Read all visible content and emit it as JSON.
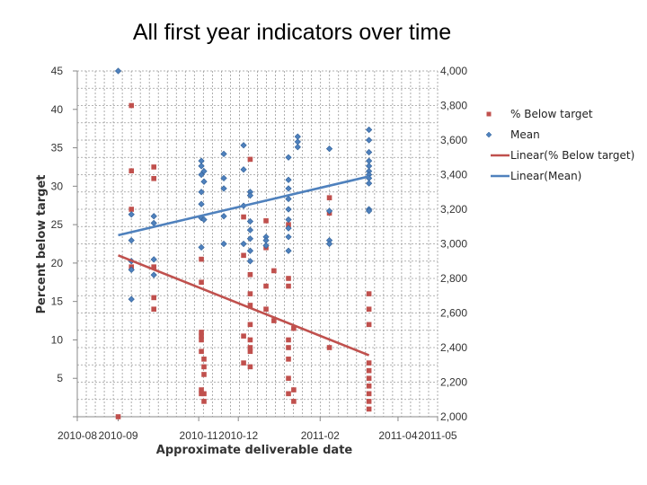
{
  "chart_data": {
    "type": "scatter",
    "title": "All first year indicators over time",
    "xlabel": "Approximate deliverable date",
    "ylabel": "Percent below target",
    "y2label": "Mean",
    "x_ticks": [
      "2010-08",
      "2010-09",
      "2010-11",
      "2010-12",
      "2011-02",
      "2011-04",
      "2011-05"
    ],
    "xlim": [
      "2010-08-01",
      "2011-05-01"
    ],
    "ylim": [
      0,
      45
    ],
    "y_ticks": [
      "45",
      "40",
      "35",
      "30",
      "25",
      "20",
      "15",
      "10",
      "5",
      "0"
    ],
    "y2lim": [
      2000,
      4000
    ],
    "y2_ticks": [
      "4,000",
      "3,800",
      "3,600",
      "3,400",
      "3,200",
      "3,000",
      "2,800",
      "2,600",
      "2,400",
      "2,200",
      "2,000"
    ],
    "grid": true,
    "legend_position": "right",
    "colors": {
      "below": "#c0504d",
      "mean": "#4f81bd",
      "mean_edge": "#2f5f97"
    },
    "legend": [
      "% Below target",
      "Mean",
      "Linear(% Below target)",
      "Linear(Mean)"
    ],
    "series": [
      {
        "name": "% Below target",
        "axis": "left",
        "points": [
          [
            "2010-09-01",
            0
          ],
          [
            "2010-09-11",
            40.5
          ],
          [
            "2010-09-11",
            32
          ],
          [
            "2010-09-11",
            27
          ],
          [
            "2010-09-11",
            19.5
          ],
          [
            "2010-09-28",
            32.5
          ],
          [
            "2010-09-28",
            31
          ],
          [
            "2010-09-28",
            19.5
          ],
          [
            "2010-09-28",
            15.5
          ],
          [
            "2010-09-28",
            14
          ],
          [
            "2010-11-03",
            20.5
          ],
          [
            "2010-11-03",
            17.5
          ],
          [
            "2010-11-03",
            11
          ],
          [
            "2010-11-03",
            10.5
          ],
          [
            "2010-11-03",
            10
          ],
          [
            "2010-11-03",
            8.5
          ],
          [
            "2010-11-03",
            3.5
          ],
          [
            "2010-11-03",
            3
          ],
          [
            "2010-11-05",
            7.5
          ],
          [
            "2010-11-05",
            6.5
          ],
          [
            "2010-11-05",
            5.5
          ],
          [
            "2010-11-05",
            3
          ],
          [
            "2010-11-05",
            2
          ],
          [
            "2010-12-05",
            26
          ],
          [
            "2010-12-05",
            21
          ],
          [
            "2010-12-05",
            10.5
          ],
          [
            "2010-12-05",
            7
          ],
          [
            "2010-12-10",
            33.5
          ],
          [
            "2010-12-10",
            18.5
          ],
          [
            "2010-12-10",
            16
          ],
          [
            "2010-12-10",
            14.5
          ],
          [
            "2010-12-10",
            12
          ],
          [
            "2010-12-10",
            10
          ],
          [
            "2010-12-10",
            9
          ],
          [
            "2010-12-10",
            8.5
          ],
          [
            "2010-12-10",
            6.5
          ],
          [
            "2010-12-22",
            25.5
          ],
          [
            "2010-12-22",
            22
          ],
          [
            "2010-12-22",
            17
          ],
          [
            "2010-12-22",
            14
          ],
          [
            "2010-12-28",
            12.5
          ],
          [
            "2010-12-28",
            19
          ],
          [
            "2011-01-08",
            25
          ],
          [
            "2011-01-08",
            18
          ],
          [
            "2011-01-08",
            17
          ],
          [
            "2011-01-08",
            10
          ],
          [
            "2011-01-08",
            9
          ],
          [
            "2011-01-08",
            7.5
          ],
          [
            "2011-01-08",
            5
          ],
          [
            "2011-01-08",
            3
          ],
          [
            "2011-01-12",
            11.5
          ],
          [
            "2011-01-12",
            3.5
          ],
          [
            "2011-01-12",
            2
          ],
          [
            "2011-02-08",
            28.5
          ],
          [
            "2011-02-08",
            26.5
          ],
          [
            "2011-02-08",
            9
          ],
          [
            "2011-03-10",
            16
          ],
          [
            "2011-03-10",
            14
          ],
          [
            "2011-03-10",
            12
          ],
          [
            "2011-03-10",
            7
          ],
          [
            "2011-03-10",
            6
          ],
          [
            "2011-03-10",
            5
          ],
          [
            "2011-03-10",
            4
          ],
          [
            "2011-03-10",
            3
          ],
          [
            "2011-03-10",
            2
          ],
          [
            "2011-03-10",
            1
          ]
        ]
      },
      {
        "name": "Mean",
        "axis": "right",
        "points": [
          [
            "2010-09-01",
            4000
          ],
          [
            "2010-09-11",
            3170
          ],
          [
            "2010-09-11",
            3020
          ],
          [
            "2010-09-11",
            2900
          ],
          [
            "2010-09-11",
            2850
          ],
          [
            "2010-09-11",
            2680
          ],
          [
            "2010-09-28",
            3160
          ],
          [
            "2010-09-28",
            3120
          ],
          [
            "2010-09-28",
            2910
          ],
          [
            "2010-09-28",
            2820
          ],
          [
            "2010-11-03",
            3480
          ],
          [
            "2010-11-03",
            3450
          ],
          [
            "2010-11-03",
            3400
          ],
          [
            "2010-11-03",
            3300
          ],
          [
            "2010-11-03",
            3230
          ],
          [
            "2010-11-03",
            3150
          ],
          [
            "2010-11-03",
            2980
          ],
          [
            "2010-11-05",
            3420
          ],
          [
            "2010-11-05",
            3360
          ],
          [
            "2010-11-05",
            3140
          ],
          [
            "2010-11-20",
            3520
          ],
          [
            "2010-11-20",
            3380
          ],
          [
            "2010-11-20",
            3320
          ],
          [
            "2010-11-20",
            3160
          ],
          [
            "2010-11-20",
            3000
          ],
          [
            "2010-12-05",
            3570
          ],
          [
            "2010-12-05",
            3430
          ],
          [
            "2010-12-05",
            3220
          ],
          [
            "2010-12-05",
            3000
          ],
          [
            "2010-12-10",
            3300
          ],
          [
            "2010-12-10",
            3280
          ],
          [
            "2010-12-10",
            3130
          ],
          [
            "2010-12-10",
            3080
          ],
          [
            "2010-12-10",
            3030
          ],
          [
            "2010-12-10",
            2960
          ],
          [
            "2010-12-10",
            2900
          ],
          [
            "2010-12-22",
            3040
          ],
          [
            "2010-12-22",
            2990
          ],
          [
            "2010-12-22",
            3020
          ],
          [
            "2011-01-08",
            3500
          ],
          [
            "2011-01-08",
            3370
          ],
          [
            "2011-01-08",
            3320
          ],
          [
            "2011-01-08",
            3260
          ],
          [
            "2011-01-08",
            3200
          ],
          [
            "2011-01-08",
            3140
          ],
          [
            "2011-01-08",
            3090
          ],
          [
            "2011-01-08",
            3040
          ],
          [
            "2011-01-08",
            2960
          ],
          [
            "2011-01-15",
            3620
          ],
          [
            "2011-01-15",
            3590
          ],
          [
            "2011-01-15",
            3560
          ],
          [
            "2011-02-08",
            3550
          ],
          [
            "2011-02-08",
            3190
          ],
          [
            "2011-02-08",
            3020
          ],
          [
            "2011-02-08",
            3000
          ],
          [
            "2011-03-10",
            3660
          ],
          [
            "2011-03-10",
            3600
          ],
          [
            "2011-03-10",
            3530
          ],
          [
            "2011-03-10",
            3480
          ],
          [
            "2011-03-10",
            3450
          ],
          [
            "2011-03-10",
            3420
          ],
          [
            "2011-03-10",
            3400
          ],
          [
            "2011-03-10",
            3380
          ],
          [
            "2011-03-10",
            3350
          ],
          [
            "2011-03-10",
            3200
          ],
          [
            "2011-03-10",
            3190
          ]
        ]
      }
    ],
    "trendlines": [
      {
        "name": "Linear(% Below target)",
        "axis": "left",
        "from": [
          "2010-09-01",
          21
        ],
        "to": [
          "2011-03-10",
          8
        ]
      },
      {
        "name": "Linear(Mean)",
        "axis": "right",
        "from": [
          "2010-09-01",
          3050
        ],
        "to": [
          "2011-03-10",
          3390
        ]
      }
    ]
  }
}
